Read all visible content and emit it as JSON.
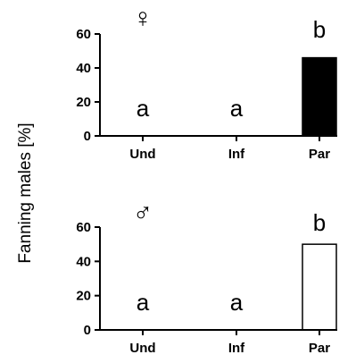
{
  "ylabel": "Fanning males [%]",
  "chart_data": [
    {
      "type": "bar",
      "panel": "female",
      "symbol": "♀",
      "categories": [
        "Und",
        "Inf",
        "Par"
      ],
      "values": [
        0,
        0,
        46
      ],
      "significance": [
        "a",
        "a",
        "b"
      ],
      "ylim": [
        0,
        60
      ],
      "yticks": [
        "0",
        "20",
        "40",
        "60"
      ],
      "ytick_values": [
        0,
        20,
        40,
        60
      ],
      "bar_fill": "#000000",
      "bar_stroke": "#000000"
    },
    {
      "type": "bar",
      "panel": "male",
      "symbol": "♂",
      "categories": [
        "Und",
        "Inf",
        "Par"
      ],
      "values": [
        0,
        0,
        50
      ],
      "significance": [
        "a",
        "a",
        "b"
      ],
      "ylim": [
        0,
        60
      ],
      "yticks": [
        "0",
        "20",
        "40",
        "60"
      ],
      "ytick_values": [
        0,
        20,
        40,
        60
      ],
      "bar_fill": "#ffffff",
      "bar_stroke": "#000000"
    }
  ]
}
